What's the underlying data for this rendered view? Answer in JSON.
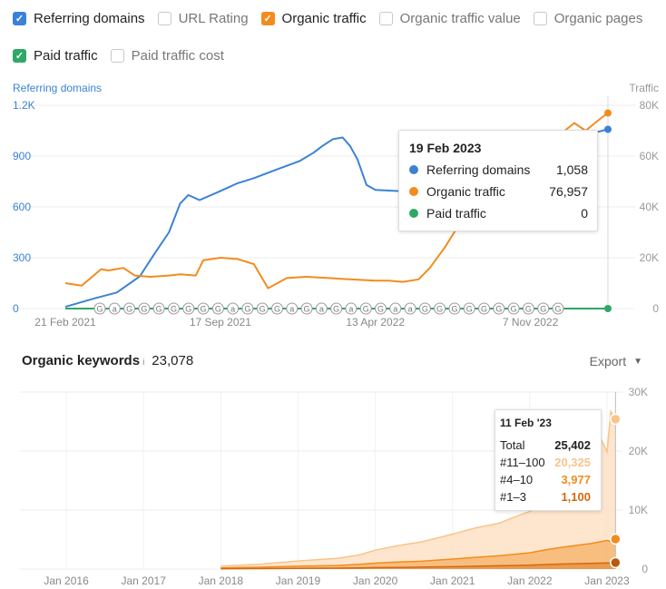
{
  "options": {
    "row1": [
      {
        "label": "Referring domains",
        "checked": true,
        "color": "#3b82d6"
      },
      {
        "label": "URL Rating",
        "checked": false,
        "color": "#cccccc"
      },
      {
        "label": "Organic traffic",
        "checked": true,
        "color": "#f28c1e"
      },
      {
        "label": "Organic traffic value",
        "checked": false,
        "color": "#cccccc"
      },
      {
        "label": "Organic pages",
        "checked": false,
        "color": "#cccccc"
      }
    ],
    "row2": [
      {
        "label": "Paid traffic",
        "checked": true,
        "color": "#2ea866"
      },
      {
        "label": "Paid traffic cost",
        "checked": false,
        "color": "#cccccc"
      }
    ]
  },
  "top_chart": {
    "left_axis_title": "Referring domains",
    "right_axis_title": "Traffic",
    "left_ticks": [
      "1.2K",
      "900",
      "600",
      "300",
      "0"
    ],
    "right_ticks": [
      "80K",
      "60K",
      "40K",
      "20K",
      "0"
    ],
    "x_ticks": [
      "21 Feb 2021",
      "17 Sep 2021",
      "13 Apr 2022",
      "7 Nov 2022"
    ],
    "markers": [
      "G",
      "a",
      "G",
      "G",
      "G",
      "G",
      "G",
      "G",
      "G",
      "a",
      "G",
      "G",
      "G",
      "a",
      "G",
      "a",
      "G",
      "a",
      "G",
      "G",
      "a",
      "a",
      "G",
      "G",
      "G",
      "G",
      "G",
      "G",
      "G",
      "G",
      "G",
      "G"
    ],
    "tooltip": {
      "title": "19 Feb 2023",
      "rows": [
        {
          "name": "Referring domains",
          "value": "1,058",
          "color": "#3b82d6"
        },
        {
          "name": "Organic traffic",
          "value": "76,957",
          "color": "#f28c1e"
        },
        {
          "name": "Paid traffic",
          "value": "0",
          "color": "#2ea866"
        }
      ]
    }
  },
  "keywords": {
    "title": "Organic keywords",
    "info": "i",
    "count": "23,078",
    "export_label": "Export",
    "y_ticks": [
      "30K",
      "20K",
      "10K",
      "0"
    ],
    "x_ticks": [
      "Jan 2016",
      "Jan 2017",
      "Jan 2018",
      "Jan 2019",
      "Jan 2020",
      "Jan 2021",
      "Jan 2022",
      "Jan 2023"
    ],
    "tooltip": {
      "title": "11 Feb '23",
      "rows": [
        {
          "name": "Total",
          "value": "25,402",
          "color": "#222222"
        },
        {
          "name": "#11–100",
          "value": "20,325",
          "color": "#f9c48a"
        },
        {
          "name": "#4–10",
          "value": "3,977",
          "color": "#f28c1e"
        },
        {
          "name": "#1–3",
          "value": "1,100",
          "color": "#d4690f"
        }
      ]
    }
  },
  "chart_data": [
    {
      "type": "line",
      "x_labels": [
        "21 Feb 2021",
        "17 Sep 2021",
        "13 Apr 2022",
        "7 Nov 2022"
      ],
      "series": [
        {
          "name": "Referring domains",
          "axis": "left",
          "color": "#3b82d6",
          "x": [
            "2021-02-21",
            "2021-04-01",
            "2021-05-01",
            "2021-06-01",
            "2021-06-20",
            "2021-07-10",
            "2021-07-25",
            "2021-08-05",
            "2021-08-20",
            "2021-09-10",
            "2021-10-10",
            "2021-11-01",
            "2021-12-01",
            "2022-01-01",
            "2022-01-20",
            "2022-02-01",
            "2022-02-15",
            "2022-02-28",
            "2022-03-10",
            "2022-03-20",
            "2022-04-01",
            "2022-04-13",
            "2022-06-01",
            "2022-08-01",
            "2022-09-15",
            "2022-11-07",
            "2022-12-15",
            "2023-01-15",
            "2023-02-19"
          ],
          "y": [
            10,
            60,
            95,
            190,
            320,
            450,
            620,
            670,
            640,
            680,
            740,
            770,
            820,
            870,
            920,
            960,
            1000,
            1010,
            960,
            880,
            730,
            700,
            690,
            740,
            820,
            900,
            980,
            1020,
            1058
          ]
        },
        {
          "name": "Organic traffic",
          "axis": "right",
          "color": "#f28c1e",
          "x": [
            "2021-02-21",
            "2021-03-15",
            "2021-04-10",
            "2021-04-20",
            "2021-05-10",
            "2021-05-25",
            "2021-06-15",
            "2021-07-10",
            "2021-07-25",
            "2021-08-15",
            "2021-08-25",
            "2021-09-17",
            "2021-10-10",
            "2021-11-01",
            "2021-11-20",
            "2021-12-15",
            "2022-01-10",
            "2022-02-10",
            "2022-03-10",
            "2022-04-13",
            "2022-05-01",
            "2022-05-20",
            "2022-06-10",
            "2022-06-25",
            "2022-07-15",
            "2022-08-01",
            "2022-08-15",
            "2022-09-10",
            "2022-10-10",
            "2022-11-07",
            "2022-12-10",
            "2023-01-05",
            "2023-01-20",
            "2023-02-10",
            "2023-02-19"
          ],
          "y": [
            10000,
            9000,
            15500,
            15000,
            16000,
            13000,
            12500,
            13000,
            13500,
            13000,
            19000,
            20000,
            19500,
            17500,
            8000,
            12000,
            12500,
            12000,
            11500,
            11000,
            11000,
            10500,
            11500,
            16000,
            24000,
            32000,
            45000,
            52000,
            58000,
            60000,
            67000,
            73000,
            70000,
            75000,
            76957
          ]
        },
        {
          "name": "Paid traffic",
          "axis": "right",
          "color": "#2ea866",
          "x": [
            "2021-02-21",
            "2023-02-19"
          ],
          "y": [
            0,
            0
          ]
        }
      ],
      "left_ylim": [
        0,
        1200
      ],
      "right_ylim": [
        0,
        80000
      ],
      "left_ylabel": "Referring domains",
      "right_ylabel": "Traffic",
      "xlim": [
        "2021-02-21",
        "2023-02-19"
      ]
    },
    {
      "type": "area",
      "x_labels": [
        "Jan 2016",
        "Jan 2017",
        "Jan 2018",
        "Jan 2019",
        "Jan 2020",
        "Jan 2021",
        "Jan 2022",
        "Jan 2023"
      ],
      "x": [
        2018.0,
        2018.5,
        2019.0,
        2019.5,
        2019.8,
        2020.0,
        2020.3,
        2020.6,
        2021.0,
        2021.3,
        2021.6,
        2021.8,
        2022.0,
        2022.2,
        2022.4,
        2022.6,
        2022.8,
        2022.9,
        2023.0,
        2023.05,
        2023.11
      ],
      "series": [
        {
          "name": "#1–3",
          "color": "#d4690f",
          "values": [
            50,
            80,
            120,
            150,
            200,
            250,
            280,
            320,
            400,
            480,
            550,
            600,
            650,
            750,
            850,
            900,
            950,
            1000,
            1050,
            1000,
            1100
          ]
        },
        {
          "name": "#4–10",
          "color": "#f28c1e",
          "values": [
            150,
            230,
            350,
            450,
            600,
            750,
            900,
            1000,
            1300,
            1500,
            1700,
            1900,
            2100,
            2500,
            2800,
            3100,
            3400,
            3600,
            3800,
            3700,
            3977
          ]
        },
        {
          "name": "#11–100",
          "color": "#f9c48a",
          "values": [
            300,
            500,
            900,
            1200,
            1600,
            2200,
            2800,
            3300,
            4200,
            5000,
            5500,
            6300,
            7000,
            7800,
            9000,
            10000,
            13000,
            18000,
            15000,
            22000,
            20325
          ]
        }
      ],
      "ylim": [
        0,
        30000
      ],
      "xlim": [
        2015.4,
        2023.2
      ]
    }
  ]
}
